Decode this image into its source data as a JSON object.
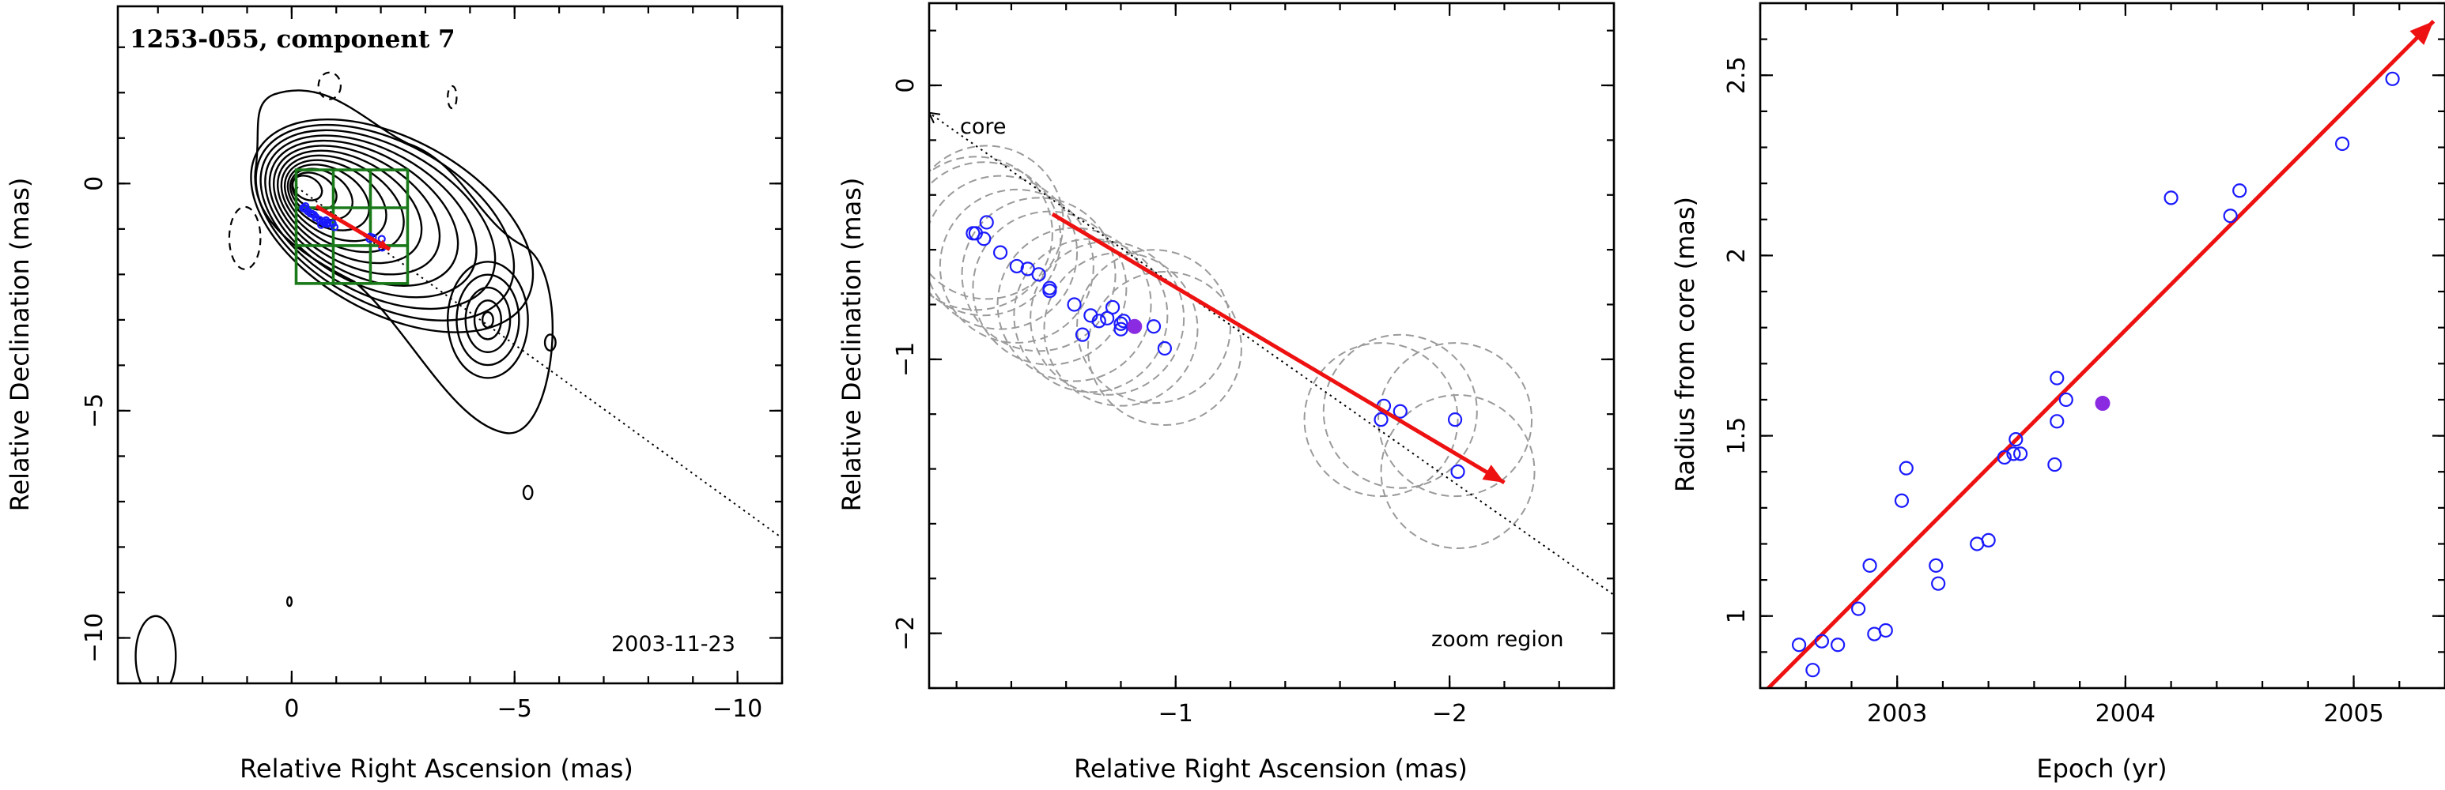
{
  "chart_data": [
    {
      "type": "scatter",
      "title": "1253-055, component 7",
      "date_label": "2003-11-23",
      "xlabel": "Relative Right Ascension (mas)",
      "ylabel": "Relative Declination (mas)",
      "xlim": [
        3.9,
        -11
      ],
      "ylim": [
        -11,
        3.9
      ],
      "xticks": [
        0,
        -5,
        -10
      ],
      "xtick_labels": [
        "0",
        "−5",
        "−10"
      ],
      "yticks": [
        0,
        -5,
        -10
      ],
      "ytick_labels": [
        "0",
        "−5",
        "−10"
      ],
      "contour_peak": [
        0,
        0
      ],
      "secondary_peak": [
        -4.4,
        -3.0
      ],
      "zoom_box": {
        "ra": [
          -0.1,
          -2.6
        ],
        "dec": [
          -2.2,
          0.3
        ]
      },
      "trajectory": {
        "from": [
          0,
          0
        ],
        "to": [
          -11,
          -7.8
        ]
      },
      "vector": {
        "from": [
          -0.55,
          -0.5
        ],
        "to": [
          -2.2,
          -1.45
        ]
      }
    },
    {
      "type": "scatter",
      "xlabel": "Relative Right Ascension (mas)",
      "ylabel": "Relative Declination (mas)",
      "annotation_core": "core",
      "annotation_zoom": "zoom region",
      "xlim": [
        -0.1,
        -2.6
      ],
      "ylim": [
        -2.2,
        0.3
      ],
      "xticks": [
        -1,
        -2
      ],
      "xtick_labels": [
        "−1",
        "−2"
      ],
      "yticks": [
        0,
        -1,
        -2
      ],
      "ytick_labels": [
        "0",
        "−1",
        "−2"
      ],
      "positions_x": [
        -0.31,
        -0.27,
        -0.26,
        -0.3,
        -0.36,
        -0.42,
        -0.46,
        -0.5,
        -0.54,
        -0.54,
        -0.63,
        -0.66,
        -0.69,
        -0.72,
        -0.75,
        -0.77,
        -0.8,
        -0.92,
        -0.8,
        -0.96,
        -1.75,
        -1.82,
        -2.02,
        -2.03,
        -1.76,
        -0.81
      ],
      "positions_y": [
        -0.5,
        -0.54,
        -0.54,
        -0.56,
        -0.61,
        -0.66,
        -0.67,
        -0.69,
        -0.74,
        -0.75,
        -0.8,
        -0.91,
        -0.84,
        -0.86,
        -0.85,
        -0.81,
        -0.89,
        -0.88,
        -0.87,
        -0.96,
        -1.22,
        -1.19,
        -1.22,
        -1.41,
        -1.17,
        -0.86
      ],
      "highlight_point": [
        -0.85,
        -0.88
      ],
      "uncertainty_circles_x": [
        -0.31,
        -0.27,
        -0.3,
        -0.36,
        -0.42,
        -0.5,
        -0.54,
        -0.63,
        -0.69,
        -0.75,
        -0.8,
        -0.92,
        -0.96,
        -1.75,
        -1.82,
        -2.02,
        -2.03
      ],
      "uncertainty_circles_y": [
        -0.5,
        -0.54,
        -0.56,
        -0.61,
        -0.66,
        -0.69,
        -0.74,
        -0.8,
        -0.84,
        -0.85,
        -0.89,
        -0.88,
        -0.96,
        -1.22,
        -1.19,
        -1.22,
        -1.41
      ],
      "uncertainty_radius": 0.28,
      "trajectory": {
        "from": [
          -0.1,
          -0.1
        ],
        "to": [
          -2.6,
          -1.86
        ]
      },
      "vector": {
        "from": [
          -0.55,
          -0.47
        ],
        "to": [
          -2.2,
          -1.45
        ]
      }
    },
    {
      "type": "scatter",
      "xlabel": "Epoch (yr)",
      "ylabel": "Radius from core (mas)",
      "xlim": [
        2002.4,
        2005.4
      ],
      "ylim": [
        0.8,
        2.7
      ],
      "xticks": [
        2003,
        2004,
        2005
      ],
      "xtick_labels": [
        "2003",
        "2004",
        "2005"
      ],
      "yticks": [
        1,
        1.5,
        2,
        2.5
      ],
      "ytick_labels": [
        "1",
        "1.5",
        "2",
        "2.5"
      ],
      "epochs": [
        2002.57,
        2002.63,
        2002.67,
        2002.74,
        2002.83,
        2002.88,
        2002.9,
        2002.95,
        2003.02,
        2003.04,
        2003.17,
        2003.18,
        2003.35,
        2003.4,
        2003.47,
        2003.51,
        2003.52,
        2003.54,
        2003.69,
        2003.7,
        2003.7,
        2003.74,
        2004.2,
        2004.46,
        2004.5,
        2004.95,
        2005.17
      ],
      "radii": [
        0.92,
        0.85,
        0.93,
        0.92,
        1.02,
        1.14,
        0.95,
        0.96,
        1.32,
        1.41,
        1.14,
        1.09,
        1.2,
        1.21,
        1.44,
        1.45,
        1.49,
        1.45,
        1.42,
        1.54,
        1.66,
        1.6,
        2.16,
        2.11,
        2.18,
        2.31,
        2.49
      ],
      "highlight_point": [
        2003.9,
        1.59
      ],
      "fit_line": {
        "from": [
          2002.42,
          0.79
        ],
        "to": [
          2005.35,
          2.65
        ]
      }
    }
  ],
  "colors": {
    "contour": "#000000",
    "zoom_box": "#1a7a1a",
    "points": "#1a1aff",
    "highlight": "#8a2be2",
    "vector": "#ee1111",
    "uncertainty": "#9a9a9a"
  }
}
